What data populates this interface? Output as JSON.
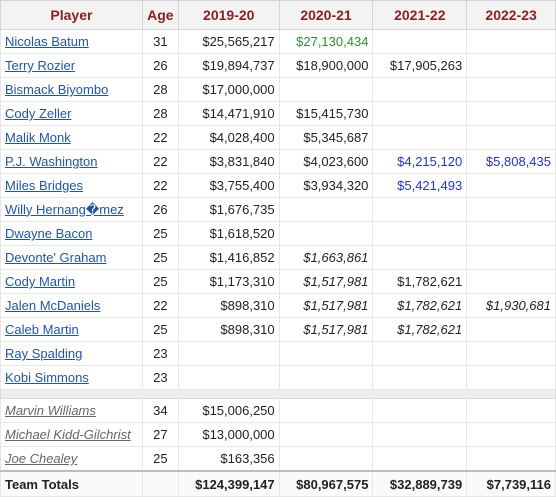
{
  "columns": [
    "Player",
    "Age",
    "2019-20",
    "2020-21",
    "2021-22",
    "2022-23"
  ],
  "roster": [
    {
      "name": "Nicolas Batum",
      "age": "31",
      "s1": "$25,565,217",
      "s2": "$27,130,434",
      "s3": "",
      "s4": ""
    },
    {
      "name": "Terry Rozier",
      "age": "26",
      "s1": "$19,894,737",
      "s2": "$18,900,000",
      "s3": "$17,905,263",
      "s4": ""
    },
    {
      "name": "Bismack Biyombo",
      "age": "28",
      "s1": "$17,000,000",
      "s2": "",
      "s3": "",
      "s4": ""
    },
    {
      "name": "Cody Zeller",
      "age": "28",
      "s1": "$14,471,910",
      "s2": "$15,415,730",
      "s3": "",
      "s4": ""
    },
    {
      "name": "Malik Monk",
      "age": "22",
      "s1": "$4,028,400",
      "s2": "$5,345,687",
      "s3": "",
      "s4": ""
    },
    {
      "name": "P.J. Washington",
      "age": "22",
      "s1": "$3,831,840",
      "s2": "$4,023,600",
      "s3": "$4,215,120",
      "s4": "$5,808,435"
    },
    {
      "name": "Miles Bridges",
      "age": "22",
      "s1": "$3,755,400",
      "s2": "$3,934,320",
      "s3": "$5,421,493",
      "s4": ""
    },
    {
      "name": "Willy Hernang�mez",
      "age": "26",
      "s1": "$1,676,735",
      "s2": "",
      "s3": "",
      "s4": ""
    },
    {
      "name": "Dwayne Bacon",
      "age": "25",
      "s1": "$1,618,520",
      "s2": "",
      "s3": "",
      "s4": ""
    },
    {
      "name": "Devonte' Graham",
      "age": "25",
      "s1": "$1,416,852",
      "s2": "$1,663,861",
      "s3": "",
      "s4": ""
    },
    {
      "name": "Cody Martin",
      "age": "25",
      "s1": "$1,173,310",
      "s2": "$1,517,981",
      "s3": "$1,782,621",
      "s4": ""
    },
    {
      "name": "Jalen McDaniels",
      "age": "22",
      "s1": "$898,310",
      "s2": "$1,517,981",
      "s3": "$1,782,621",
      "s4": "$1,930,681"
    },
    {
      "name": "Caleb Martin",
      "age": "25",
      "s1": "$898,310",
      "s2": "$1,517,981",
      "s3": "$1,782,621",
      "s4": ""
    },
    {
      "name": "Ray Spalding",
      "age": "23",
      "s1": "",
      "s2": "",
      "s3": "",
      "s4": ""
    },
    {
      "name": "Kobi Simmons",
      "age": "23",
      "s1": "",
      "s2": "",
      "s3": "",
      "s4": ""
    }
  ],
  "former": [
    {
      "name": "Marvin Williams",
      "age": "34",
      "s1": "$15,006,250",
      "s2": "",
      "s3": "",
      "s4": ""
    },
    {
      "name": "Michael Kidd-Gilchrist",
      "age": "27",
      "s1": "$13,000,000",
      "s2": "",
      "s3": "",
      "s4": ""
    },
    {
      "name": "Joe Chealey",
      "age": "25",
      "s1": "$163,356",
      "s2": "",
      "s3": "",
      "s4": ""
    }
  ],
  "totals": {
    "label": "Team Totals",
    "age": "",
    "s1": "$124,399,147",
    "s2": "$80,967,575",
    "s3": "$32,889,739",
    "s4": "$7,739,116"
  },
  "styles": {
    "option_color_green": "#2f8c2f",
    "option_color_blue": "#2233cc",
    "header_color": "#8b1f1f",
    "link_color": "#2255a7",
    "italic_cells": [
      "roster.9.s2",
      "roster.10.s2",
      "roster.11.s2",
      "roster.11.s3",
      "roster.11.s4",
      "roster.12.s2",
      "roster.12.s3"
    ],
    "green_cells": [
      "roster.0.s2"
    ],
    "blue_cells": [
      "roster.5.s3",
      "roster.5.s4",
      "roster.6.s3"
    ]
  }
}
